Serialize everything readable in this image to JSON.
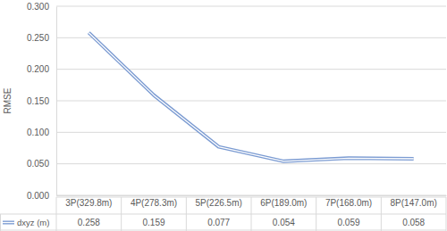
{
  "chart_data": {
    "type": "line",
    "y_label": "RMSE",
    "categories": [
      "3P(329.8m)",
      "4P(278.3m)",
      "5P(226.5m)",
      "6P(189.0m)",
      "7P(168.0m)",
      "8P(147.0m)"
    ],
    "series": [
      {
        "name": "dxyz (m)",
        "color": "#7b9bd2",
        "values": [
          0.258,
          0.159,
          0.077,
          0.054,
          0.059,
          0.058
        ]
      }
    ],
    "ylim": [
      0,
      0.3
    ],
    "yticks": [
      {
        "value": 0,
        "label": "0.000"
      },
      {
        "value": 0.05,
        "label": "0.050"
      },
      {
        "value": 0.1,
        "label": "0.100"
      },
      {
        "value": 0.15,
        "label": "0.150"
      },
      {
        "value": 0.2,
        "label": "0.200"
      },
      {
        "value": 0.25,
        "label": "0.250"
      },
      {
        "value": 0.3,
        "label": "0.300"
      }
    ],
    "grid": true,
    "data_labels": true,
    "legend": "bottom",
    "line_style": "double",
    "marker": "none"
  }
}
